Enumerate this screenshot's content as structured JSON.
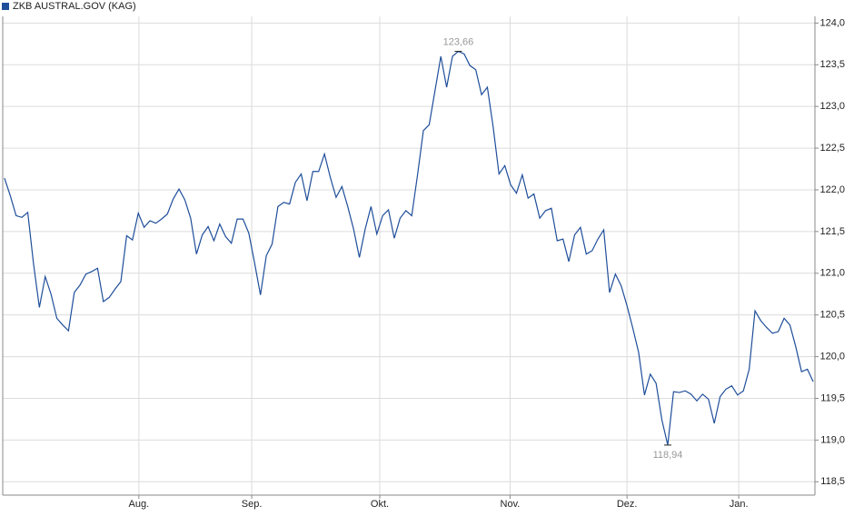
{
  "chart_data": {
    "type": "line",
    "series": [
      {
        "name": "ZKB AUSTRAL.GOV (KAG)",
        "color": "#1f4e9a",
        "values": [
          122.14,
          121.93,
          121.69,
          121.67,
          121.73,
          121.11,
          120.59,
          120.96,
          120.75,
          120.46,
          120.38,
          120.31,
          120.77,
          120.86,
          120.99,
          121.02,
          121.06,
          120.66,
          120.71,
          120.81,
          120.9,
          121.45,
          121.4,
          121.72,
          121.55,
          121.63,
          121.6,
          121.65,
          121.71,
          121.89,
          122.01,
          121.88,
          121.66,
          121.23,
          121.46,
          121.56,
          121.39,
          121.59,
          121.44,
          121.36,
          121.65,
          121.65,
          121.48,
          121.12,
          120.74,
          121.21,
          121.35,
          121.8,
          121.85,
          121.83,
          122.09,
          122.19,
          121.87,
          122.22,
          122.22,
          122.43,
          122.15,
          121.91,
          122.04,
          121.8,
          121.53,
          121.19,
          121.53,
          121.8,
          121.47,
          121.69,
          121.76,
          121.42,
          121.66,
          121.75,
          121.69,
          122.18,
          122.71,
          122.78,
          123.19,
          123.6,
          123.23,
          123.6,
          123.66,
          123.63,
          123.49,
          123.44,
          123.14,
          123.23,
          122.75,
          122.19,
          122.29,
          122.06,
          121.96,
          122.18,
          121.9,
          121.95,
          121.66,
          121.75,
          121.78,
          121.39,
          121.41,
          121.14,
          121.46,
          121.55,
          121.23,
          121.27,
          121.41,
          121.52,
          120.77,
          120.99,
          120.85,
          120.61,
          120.34,
          120.05,
          119.54,
          119.79,
          119.68,
          119.24,
          118.94,
          119.58,
          119.57,
          119.59,
          119.55,
          119.47,
          119.55,
          119.49,
          119.2,
          119.52,
          119.61,
          119.65,
          119.54,
          119.59,
          119.85,
          120.55,
          120.43,
          120.35,
          120.28,
          120.3,
          120.46,
          120.38,
          120.12,
          119.82,
          119.85,
          119.7
        ]
      }
    ],
    "xlim": [
      -0.3,
      139.3
    ],
    "xticks": [
      {
        "value": 23.1,
        "label": "Aug."
      },
      {
        "value": 42.5,
        "label": "Sep."
      },
      {
        "value": 64.5,
        "label": "Okt."
      },
      {
        "value": 86.9,
        "label": "Nov."
      },
      {
        "value": 107,
        "label": "Dez."
      },
      {
        "value": 126.2,
        "label": "Jan."
      }
    ],
    "ylim": [
      118.34,
      124.08
    ],
    "yticks": [
      {
        "value": 118.5,
        "label": "118,5"
      },
      {
        "value": 119,
        "label": "119,0"
      },
      {
        "value": 119.5,
        "label": "119,5"
      },
      {
        "value": 120,
        "label": "120,0"
      },
      {
        "value": 120.5,
        "label": "120,5"
      },
      {
        "value": 121,
        "label": "121,0"
      },
      {
        "value": 121.5,
        "label": "121,5"
      },
      {
        "value": 122,
        "label": "122,0"
      },
      {
        "value": 122.5,
        "label": "122,5"
      },
      {
        "value": 123,
        "label": "123,0"
      },
      {
        "value": 123.5,
        "label": "123,5"
      },
      {
        "value": 124,
        "label": "124,0"
      }
    ],
    "annotations": [
      {
        "text": "123,66",
        "value": 123.66
      },
      {
        "text": "118,94",
        "value": 118.94
      }
    ],
    "grid": true
  }
}
